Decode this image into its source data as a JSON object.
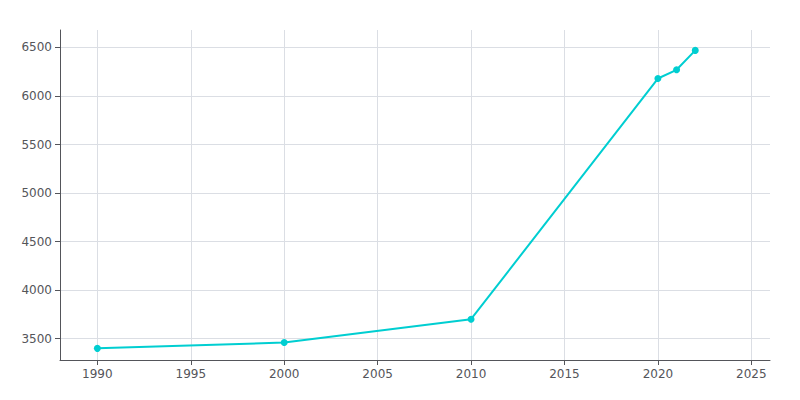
{
  "chart_data": {
    "type": "line",
    "x": [
      1990,
      2000,
      2010,
      2020,
      2021,
      2022
    ],
    "values": [
      3400,
      3460,
      3700,
      6180,
      6270,
      6470
    ],
    "color": "#00CED1",
    "marker": "circle",
    "xlim": [
      1988,
      2026
    ],
    "xticks": [
      1990,
      1995,
      2000,
      2005,
      2010,
      2015,
      2020,
      2025
    ],
    "ylim": [
      3280,
      6680
    ],
    "yticks": [
      3500,
      4000,
      4500,
      5000,
      5500,
      6000,
      6500
    ],
    "grid": true
  }
}
